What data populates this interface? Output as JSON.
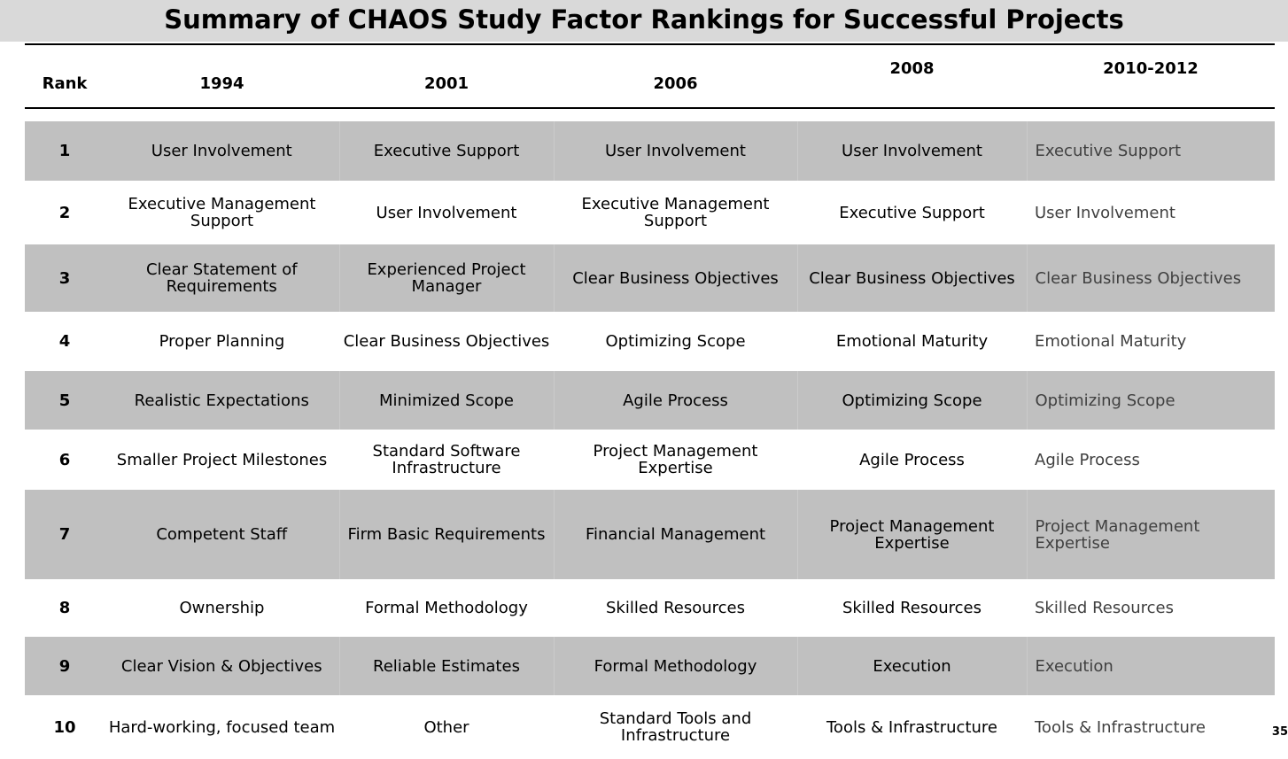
{
  "title": "Summary of CHAOS Study Factor Rankings for Successful Projects",
  "headers": [
    "Rank",
    "1994",
    "2001",
    "2006",
    "2008",
    "2010-2012"
  ],
  "rows": [
    [
      "1",
      "User Involvement",
      "Executive Support",
      "User Involvement",
      "User Involvement",
      "Executive Support"
    ],
    [
      "2",
      "Executive Management Support",
      "User Involvement",
      "Executive Management Support",
      "Executive Support",
      "User Involvement"
    ],
    [
      "3",
      "Clear Statement of Requirements",
      "Experienced Project Manager",
      "Clear Business Objectives",
      "Clear Business  Objectives",
      "Clear Business Objectives"
    ],
    [
      "4",
      "Proper Planning",
      "Clear Business Objectives",
      "Optimizing Scope",
      "Emotional Maturity",
      "Emotional Maturity"
    ],
    [
      "5",
      "Realistic Expectations",
      "Minimized Scope",
      "Agile Process",
      "Optimizing Scope",
      "Optimizing Scope"
    ],
    [
      "6",
      "Smaller Project Milestones",
      "Standard Software Infrastructure",
      "Project Management Expertise",
      "Agile Process",
      "Agile Process"
    ],
    [
      "7",
      "Competent Staff",
      "Firm Basic Requirements",
      "Financial Management",
      "Project Management Expertise",
      "Project Management Expertise"
    ],
    [
      "8",
      "Ownership",
      "Formal Methodology",
      "Skilled Resources",
      "Skilled Resources",
      "Skilled Resources"
    ],
    [
      "9",
      "Clear Vision & Objectives",
      "Reliable Estimates",
      "Formal Methodology",
      "Execution",
      "Execution"
    ],
    [
      "10",
      "Hard-working, focused team",
      "Other",
      "Standard Tools and Infrastructure",
      "Tools & Infrastructure",
      "Tools & Infrastructure"
    ]
  ],
  "page_number": "35"
}
